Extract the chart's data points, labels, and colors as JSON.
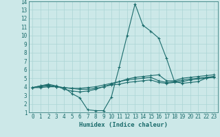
{
  "bg_color": "#cce8e8",
  "grid_color": "#aad4d4",
  "line_color": "#1a6b6b",
  "xlabel": "Humidex (Indice chaleur)",
  "xlim": [
    -0.5,
    23.5
  ],
  "ylim": [
    1,
    14
  ],
  "xticks": [
    0,
    1,
    2,
    3,
    4,
    5,
    6,
    7,
    8,
    9,
    10,
    11,
    12,
    13,
    14,
    15,
    16,
    17,
    18,
    19,
    20,
    21,
    22,
    23
  ],
  "yticks": [
    1,
    2,
    3,
    4,
    5,
    6,
    7,
    8,
    9,
    10,
    11,
    12,
    13,
    14
  ],
  "tick_fontsize": 5.5,
  "xlabel_fontsize": 6.5,
  "series": [
    [
      3.9,
      4.1,
      4.2,
      4.0,
      3.9,
      3.2,
      2.7,
      1.3,
      1.2,
      1.2,
      2.8,
      6.3,
      10.0,
      13.7,
      11.2,
      10.5,
      9.7,
      7.3,
      4.6,
      4.4,
      4.5,
      4.6,
      5.0,
      5.2
    ],
    [
      3.9,
      4.1,
      4.3,
      4.1,
      3.7,
      3.5,
      3.4,
      3.5,
      3.7,
      4.0,
      4.3,
      4.6,
      4.9,
      5.1,
      5.2,
      5.3,
      5.4,
      4.7,
      4.7,
      5.0,
      5.1,
      5.2,
      5.3,
      5.4
    ],
    [
      3.9,
      4.0,
      4.1,
      4.0,
      3.9,
      3.8,
      3.8,
      3.9,
      4.0,
      4.2,
      4.4,
      4.6,
      4.8,
      4.9,
      5.0,
      5.1,
      4.7,
      4.5,
      4.6,
      4.8,
      4.9,
      5.0,
      5.1,
      5.2
    ],
    [
      3.9,
      3.9,
      4.0,
      4.0,
      3.9,
      3.8,
      3.7,
      3.7,
      3.8,
      4.0,
      4.2,
      4.3,
      4.5,
      4.6,
      4.7,
      4.8,
      4.5,
      4.4,
      4.5,
      4.6,
      4.8,
      4.9,
      5.0,
      5.1
    ]
  ]
}
